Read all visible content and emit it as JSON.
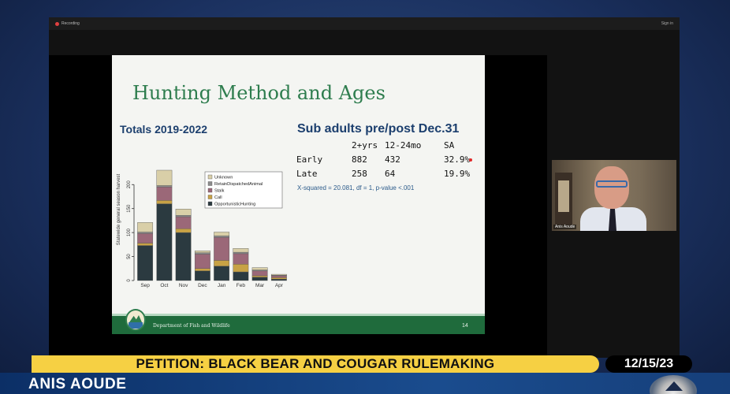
{
  "meeting": {
    "recording_label": "Recording",
    "sign_in_label": "Sign in",
    "participant_name": "Anis Aoude"
  },
  "slide": {
    "title": "Hunting Method and Ages",
    "totals_title": "Totals 2019-2022",
    "sub_adults_title": "Sub adults pre/post Dec.31",
    "stats_table": {
      "headers": [
        "",
        "2+yrs",
        "12-24mo",
        "SA"
      ],
      "rows": [
        [
          "Early",
          "882",
          "432",
          "32.9%"
        ],
        [
          "Late",
          "258",
          "64",
          "19.9%"
        ]
      ]
    },
    "chi_square": "X-squared = 20.081, df = 1, p-value <.001",
    "department": "Department of Fish and Wildlife",
    "page_number": "14"
  },
  "chart_data": {
    "type": "bar",
    "stacked": true,
    "categories": [
      "Sep",
      "Oct",
      "Nov",
      "Dec",
      "Jan",
      "Feb",
      "Mar",
      "Apr"
    ],
    "ylabel": "Statewide general season harvest",
    "ylim": [
      0,
      230
    ],
    "yticks": [
      0,
      50,
      100,
      150,
      200
    ],
    "legend_position": "top-right",
    "series": [
      {
        "name": "OpportunisticHunting",
        "color": "#2b3a40",
        "values": [
          73,
          160,
          100,
          20,
          30,
          18,
          7,
          3
        ]
      },
      {
        "name": "Call",
        "color": "#c8a245",
        "values": [
          5,
          7,
          8,
          5,
          12,
          16,
          3,
          3
        ]
      },
      {
        "name": "Stalk",
        "color": "#9b6878",
        "values": [
          20,
          28,
          25,
          30,
          48,
          22,
          10,
          4
        ]
      },
      {
        "name": "RetainDispatchedAnimal",
        "color": "#8c8c8c",
        "values": [
          3,
          3,
          3,
          3,
          3,
          3,
          2,
          1
        ]
      },
      {
        "name": "Unknown",
        "color": "#d9cfa8",
        "values": [
          20,
          32,
          13,
          4,
          8,
          8,
          5,
          2
        ]
      }
    ]
  },
  "lower_third": {
    "headline": "PETITION: BLACK BEAR AND COUGAR RULEMAKING",
    "date": "12/15/23",
    "speaker": "ANIS AOUDE"
  }
}
